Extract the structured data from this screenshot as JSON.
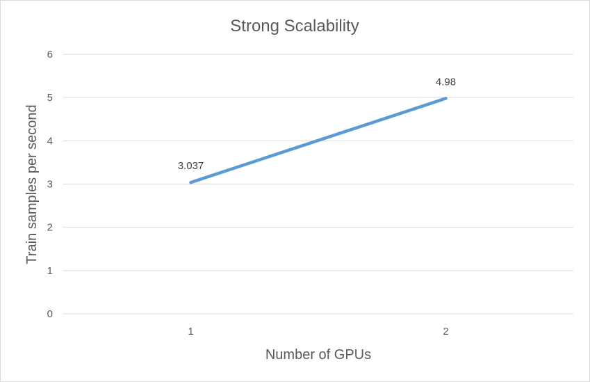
{
  "chart_data": {
    "type": "line",
    "title": "Strong Scalability",
    "xlabel": "Number of GPUs",
    "ylabel": "Train samples per second",
    "categories": [
      "1",
      "2"
    ],
    "series": [
      {
        "values": [
          3.037,
          4.98
        ],
        "labels": [
          "3.037",
          "4.98"
        ],
        "color": "#5b9bd5"
      }
    ],
    "ylim": [
      0,
      6
    ],
    "yticks": [
      0,
      1,
      2,
      3,
      4,
      5,
      6
    ],
    "grid": true,
    "legend": "none"
  }
}
